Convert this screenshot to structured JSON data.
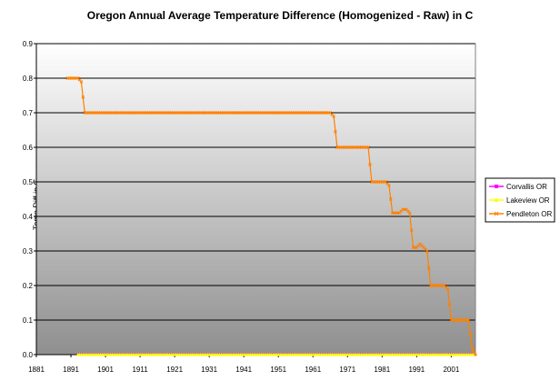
{
  "chart_data": {
    "type": "line",
    "title": "Oregon Annual Average Temperature Difference (Homogenized - Raw) in C",
    "xlabel": "",
    "ylabel": "Temp Diff in C",
    "ylim": [
      0,
      0.9
    ],
    "yticks": [
      "0.0",
      "0.1",
      "0.2",
      "0.3",
      "0.4",
      "0.5",
      "0.6",
      "0.7",
      "0.8",
      "0.9"
    ],
    "xlim": [
      1881,
      2008
    ],
    "xticks": [
      1881,
      1891,
      1901,
      1911,
      1921,
      1931,
      1941,
      1951,
      1961,
      1971,
      1981,
      1991,
      2001
    ],
    "grid": true,
    "legend_position": "right",
    "series": [
      {
        "name": "Corvallis OR",
        "color": "#ff00ff",
        "marker": "square",
        "points": [
          [
            1893,
            0.0
          ],
          [
            2008,
            0.0
          ]
        ]
      },
      {
        "name": "Lakeview OR",
        "color": "#ffff00",
        "marker": "triangle",
        "points": [
          [
            1893,
            0.0
          ],
          [
            2008,
            0.0
          ]
        ]
      },
      {
        "name": "Pendleton OR",
        "color": "#ff8000",
        "marker": "cross",
        "points": [
          [
            1890,
            0.8
          ],
          [
            1893,
            0.8
          ],
          [
            1894,
            0.79
          ],
          [
            1895,
            0.7
          ],
          [
            1966,
            0.7
          ],
          [
            1967,
            0.69
          ],
          [
            1968,
            0.6
          ],
          [
            1977,
            0.6
          ],
          [
            1978,
            0.5
          ],
          [
            1982,
            0.5
          ],
          [
            1983,
            0.49
          ],
          [
            1984,
            0.41
          ],
          [
            1986,
            0.41
          ],
          [
            1987,
            0.42
          ],
          [
            1988,
            0.42
          ],
          [
            1989,
            0.41
          ],
          [
            1990,
            0.31
          ],
          [
            1991,
            0.31
          ],
          [
            1992,
            0.32
          ],
          [
            1993,
            0.31
          ],
          [
            1994,
            0.3
          ],
          [
            1995,
            0.2
          ],
          [
            1999,
            0.2
          ],
          [
            2000,
            0.19
          ],
          [
            2001,
            0.1
          ],
          [
            2006,
            0.1
          ],
          [
            2007,
            0.02
          ],
          [
            2008,
            0.0
          ]
        ]
      }
    ]
  }
}
